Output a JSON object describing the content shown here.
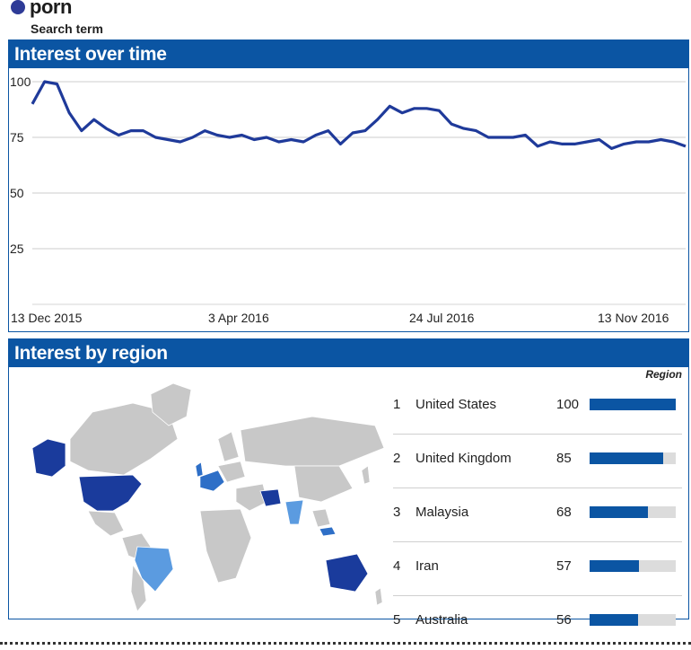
{
  "legend": {
    "term": "porn",
    "sublabel": "Search term",
    "color": "#2e3b97"
  },
  "time_panel": {
    "title": "Interest over time"
  },
  "region_panel": {
    "title": "Interest by region",
    "column_header": "Region"
  },
  "colors": {
    "header": "#0b55a3",
    "line": "#1f3a9a",
    "bar": "#0b55a3",
    "bar_bg": "#dcdcdc",
    "map_base": "#c8c8c8",
    "map_high": "#1a3b9c",
    "map_mid": "#2e6fc7",
    "map_low": "#5b9be0"
  },
  "chart_data": {
    "type": "line",
    "title": "Interest over time",
    "ylim": [
      0,
      100
    ],
    "yticks": [
      "100",
      "75",
      "50",
      "25"
    ],
    "xtick_labels": [
      "13 Dec 2015",
      "3 Apr 2016",
      "24 Jul 2016",
      "13 Nov 2016"
    ],
    "grid": true,
    "series": [
      {
        "name": "porn",
        "values": [
          90,
          100,
          99,
          86,
          78,
          83,
          79,
          76,
          78,
          78,
          75,
          74,
          73,
          75,
          78,
          76,
          75,
          76,
          74,
          75,
          73,
          74,
          73,
          76,
          78,
          72,
          77,
          78,
          83,
          89,
          86,
          88,
          88,
          87,
          81,
          79,
          78,
          75,
          75,
          75,
          76,
          71,
          73,
          72,
          72,
          73,
          74,
          70,
          72,
          73,
          73,
          74,
          73,
          71
        ]
      }
    ]
  },
  "regions": [
    {
      "rank": "1",
      "name": "United States",
      "value": 100
    },
    {
      "rank": "2",
      "name": "United Kingdom",
      "value": 85
    },
    {
      "rank": "3",
      "name": "Malaysia",
      "value": 68
    },
    {
      "rank": "4",
      "name": "Iran",
      "value": 57
    },
    {
      "rank": "5",
      "name": "Australia",
      "value": 56
    }
  ]
}
